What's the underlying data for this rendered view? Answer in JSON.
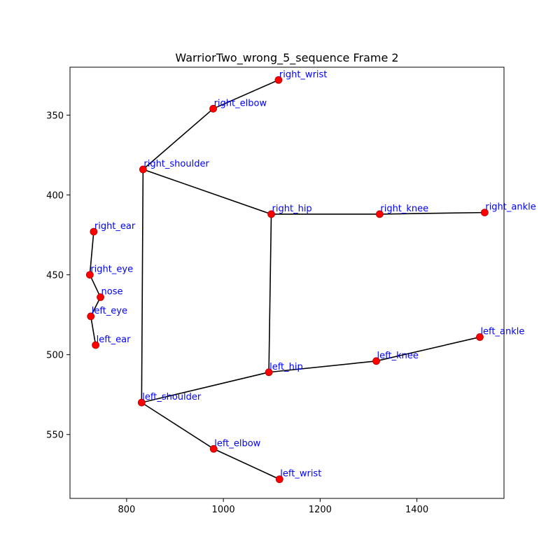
{
  "chart_data": {
    "type": "scatter",
    "title": "WarriorTwo_wrong_5_sequence Frame 2",
    "xlabel": "",
    "ylabel": "",
    "xlim": [
      683,
      1580
    ],
    "ylim": [
      590,
      320
    ],
    "y_inverted": true,
    "grid": false,
    "x_ticks": [
      800,
      1000,
      1200,
      1400
    ],
    "y_ticks": [
      350,
      400,
      450,
      500,
      550
    ],
    "point_color": "#ff0000",
    "label_color": "#0000ff",
    "line_color": "#000000",
    "keypoints": [
      {
        "name": "nose",
        "x": 746,
        "y": 464
      },
      {
        "name": "right_eye",
        "x": 724,
        "y": 450
      },
      {
        "name": "left_eye",
        "x": 726,
        "y": 476
      },
      {
        "name": "right_ear",
        "x": 732,
        "y": 423
      },
      {
        "name": "left_ear",
        "x": 736,
        "y": 494
      },
      {
        "name": "right_shoulder",
        "x": 834,
        "y": 384
      },
      {
        "name": "left_shoulder",
        "x": 831,
        "y": 530
      },
      {
        "name": "right_elbow",
        "x": 979,
        "y": 346
      },
      {
        "name": "left_elbow",
        "x": 980,
        "y": 559
      },
      {
        "name": "right_wrist",
        "x": 1114,
        "y": 328
      },
      {
        "name": "left_wrist",
        "x": 1116,
        "y": 578
      },
      {
        "name": "right_hip",
        "x": 1099,
        "y": 412
      },
      {
        "name": "left_hip",
        "x": 1094,
        "y": 511
      },
      {
        "name": "right_knee",
        "x": 1323,
        "y": 412
      },
      {
        "name": "left_knee",
        "x": 1316,
        "y": 504
      },
      {
        "name": "right_ankle",
        "x": 1540,
        "y": 411
      },
      {
        "name": "left_ankle",
        "x": 1530,
        "y": 489
      }
    ],
    "connections": [
      [
        "right_ear",
        "right_eye"
      ],
      [
        "right_eye",
        "nose"
      ],
      [
        "nose",
        "left_eye"
      ],
      [
        "left_eye",
        "left_ear"
      ],
      [
        "right_wrist",
        "right_elbow"
      ],
      [
        "right_elbow",
        "right_shoulder"
      ],
      [
        "right_shoulder",
        "left_shoulder"
      ],
      [
        "right_shoulder",
        "right_hip"
      ],
      [
        "left_shoulder",
        "left_hip"
      ],
      [
        "left_shoulder",
        "left_elbow"
      ],
      [
        "left_elbow",
        "left_wrist"
      ],
      [
        "right_hip",
        "left_hip"
      ],
      [
        "right_hip",
        "right_knee"
      ],
      [
        "right_knee",
        "right_ankle"
      ],
      [
        "left_hip",
        "left_knee"
      ],
      [
        "left_knee",
        "left_ankle"
      ]
    ]
  }
}
